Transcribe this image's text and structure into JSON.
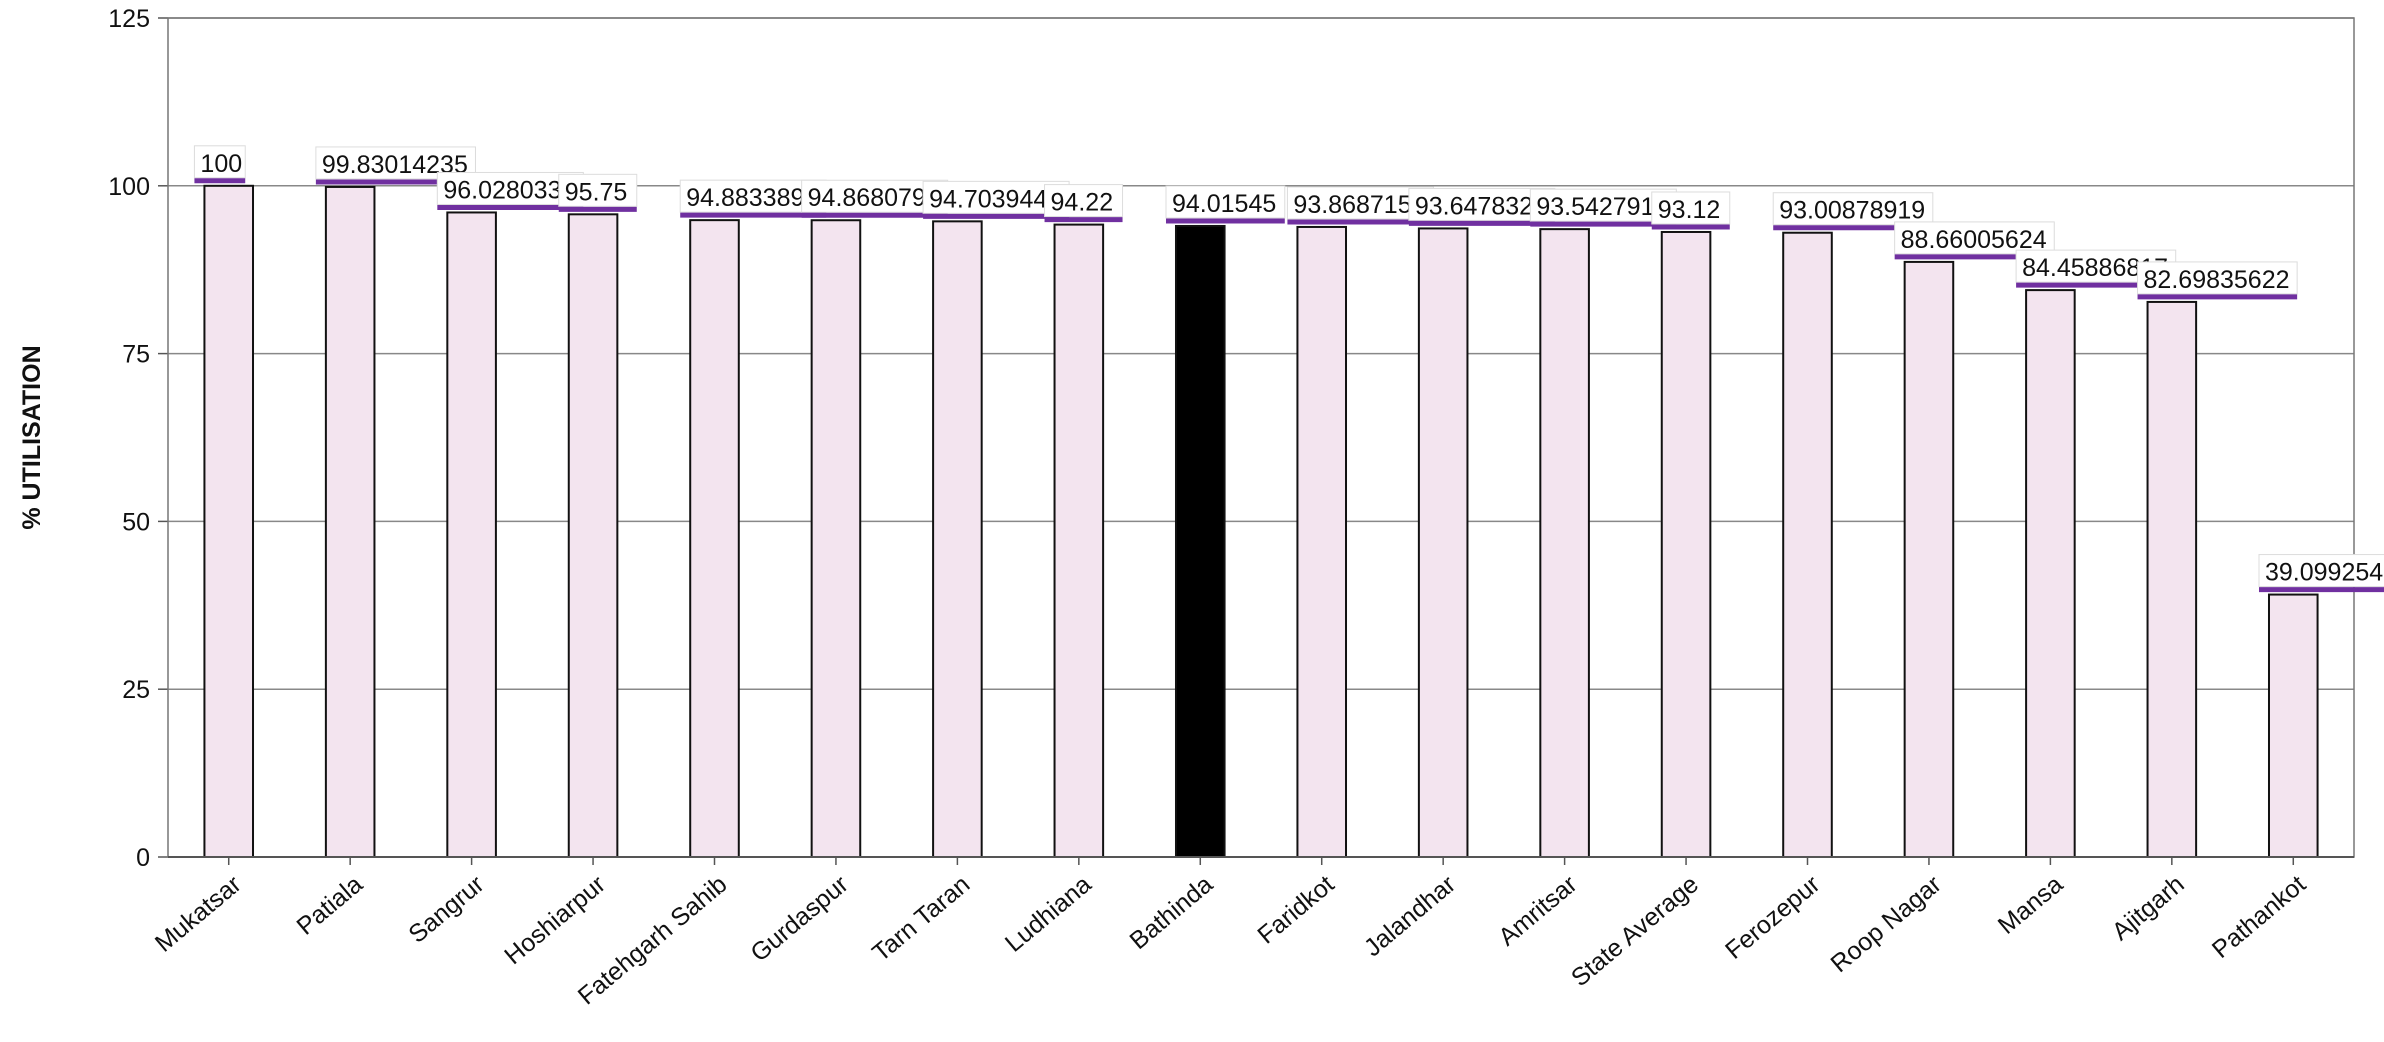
{
  "chart_data": {
    "type": "bar",
    "title": "",
    "xlabel": "",
    "ylabel": "% UTILISATION",
    "ylim": [
      0,
      125
    ],
    "yticks": [
      0,
      25,
      50,
      75,
      100,
      125
    ],
    "grid": true,
    "legend": "none",
    "categories": [
      "Mukatsar",
      "Patiala",
      "Sangrur",
      "Hoshiarpur",
      "Fatehgarh Sahib",
      "Gurdaspur",
      "Tarn Taran",
      "Ludhiana",
      "Bathinda",
      "Faridkot",
      "Jalandhar",
      "Amritsar",
      "State Average",
      "Ferozepur",
      "Roop Nagar",
      "Mansa",
      "Ajitgarh",
      "Pathankot"
    ],
    "values": [
      100,
      99.83014235,
      96.0280332,
      95.75,
      94.8833897,
      94.8680796,
      94.7039448,
      94.22,
      94.01545,
      93.8687159,
      93.6478321,
      93.542791,
      93.12,
      93.00878919,
      88.66005624,
      84.45886817,
      82.69835622,
      39.0992543
    ],
    "data_labels": [
      "100",
      "99.83014235",
      "96.0280332",
      "95.75",
      "94.8833897",
      "94.8680796",
      "94.7039448",
      "94.22",
      "94.01545",
      "93.8687159",
      "93.6478321",
      "93.5427910",
      "93.12",
      "93.00878919",
      "88.66005624",
      "84.45886817",
      "82.69835622",
      "39.0992543"
    ],
    "colors": {
      "bar_fill": "#f3e4ef",
      "bar_stroke": "#111111",
      "highlight_fill": "#000000",
      "label_underline": "#7030a0",
      "grid": "#888888"
    },
    "highlight": [
      "Bathinda"
    ]
  }
}
